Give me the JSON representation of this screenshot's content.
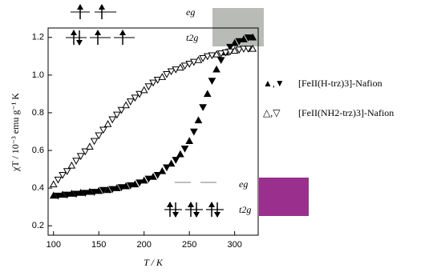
{
  "chart_data": {
    "type": "scatter",
    "xlabel": "T / K",
    "ylabel": "χT / 10⁻³ emu g⁻¹ K",
    "xlim": [
      94,
      326
    ],
    "ylim": [
      0.15,
      1.25
    ],
    "xticks": [
      100,
      150,
      200,
      250,
      300
    ],
    "yticks": [
      0.2,
      0.4,
      0.6,
      0.8,
      {
        "value": 1.0,
        "label": "1.0"
      },
      1.2
    ],
    "x": [
      100,
      105,
      110,
      115,
      120,
      125,
      130,
      135,
      140,
      145,
      150,
      155,
      160,
      165,
      170,
      175,
      180,
      185,
      190,
      195,
      200,
      205,
      210,
      215,
      220,
      225,
      230,
      235,
      240,
      245,
      250,
      255,
      260,
      265,
      270,
      275,
      280,
      285,
      290,
      295,
      300,
      305,
      310,
      315,
      320
    ],
    "series": [
      {
        "name": "[FeII(H-trz)3]-Nafion",
        "legend_symbol": "▲,▼",
        "color": "#000000",
        "filled": true,
        "values": [
          0.36,
          0.36,
          0.365,
          0.365,
          0.37,
          0.37,
          0.375,
          0.375,
          0.38,
          0.38,
          0.385,
          0.39,
          0.39,
          0.395,
          0.4,
          0.405,
          0.41,
          0.415,
          0.42,
          0.43,
          0.44,
          0.45,
          0.46,
          0.47,
          0.49,
          0.51,
          0.53,
          0.55,
          0.58,
          0.61,
          0.65,
          0.7,
          0.76,
          0.83,
          0.9,
          0.97,
          1.03,
          1.08,
          1.12,
          1.15,
          1.17,
          1.18,
          1.19,
          1.2,
          1.2
        ]
      },
      {
        "name": "[FeII(NH2-trz)3]-Nafion",
        "legend_symbol": "△,▽",
        "color": "#000000",
        "filled": false,
        "values": [
          0.42,
          0.445,
          0.47,
          0.49,
          0.52,
          0.545,
          0.57,
          0.595,
          0.62,
          0.65,
          0.68,
          0.71,
          0.74,
          0.765,
          0.79,
          0.815,
          0.84,
          0.86,
          0.88,
          0.9,
          0.92,
          0.94,
          0.96,
          0.975,
          0.99,
          1.005,
          1.02,
          1.03,
          1.04,
          1.05,
          1.06,
          1.07,
          1.08,
          1.09,
          1.1,
          1.105,
          1.11,
          1.115,
          1.12,
          1.125,
          1.13,
          1.135,
          1.14,
          1.14,
          1.14
        ]
      }
    ],
    "annotations": [
      "eg",
      "t2g",
      "eg",
      "t2g"
    ]
  }
}
